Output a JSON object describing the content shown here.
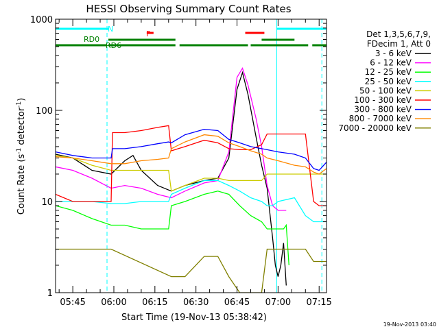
{
  "chart_data": {
    "type": "line",
    "title": "HESSI Observing Summary Count Rates",
    "xlabel": "Start Time (19-Nov-13 05:38:42)",
    "ylabel_parts": [
      "Count Rate (s",
      "-1",
      " detector",
      "-1",
      ")"
    ],
    "y_scale": "log",
    "ylim": [
      1,
      1000
    ],
    "xlim": [
      38.7,
      137.7
    ],
    "x_units": "minutes after 05:00",
    "y_tick_labels": [
      {
        "value": 1,
        "label": "1"
      },
      {
        "value": 10,
        "label": "10"
      },
      {
        "value": 100,
        "label": "100"
      },
      {
        "value": 1000,
        "label": "1000"
      }
    ],
    "x_tick_labels": [
      {
        "value": 45,
        "label": "05:45"
      },
      {
        "value": 60,
        "label": "06:00"
      },
      {
        "value": 75,
        "label": "06:15"
      },
      {
        "value": 90,
        "label": "06:30"
      },
      {
        "value": 105,
        "label": "06:45"
      },
      {
        "value": 120,
        "label": "07:00"
      },
      {
        "value": 135,
        "label": "07:15"
      }
    ],
    "legend_title": [
      "Det 1,3,5,6,7,9,",
      "FDecim 1, Att 0"
    ],
    "series": [
      {
        "name": "3 - 6 keV",
        "color": "#000000",
        "points": [
          [
            38.7,
            33
          ],
          [
            45,
            30
          ],
          [
            52,
            22
          ],
          [
            59,
            20
          ],
          [
            64,
            28
          ],
          [
            67,
            32
          ],
          [
            70,
            22
          ],
          [
            76,
            15
          ],
          [
            81,
            13
          ],
          [
            86,
            15
          ],
          [
            93,
            17
          ],
          [
            98,
            18
          ],
          [
            102,
            30
          ],
          [
            105,
            170
          ],
          [
            107,
            260
          ],
          [
            109,
            150
          ],
          [
            112,
            50
          ],
          [
            114,
            25
          ],
          [
            116,
            14
          ],
          [
            118,
            4
          ],
          [
            119,
            2
          ],
          [
            120,
            1.5
          ],
          [
            121,
            2
          ],
          [
            122,
            3.5
          ],
          [
            123,
            1.2
          ]
        ]
      },
      {
        "name": "6 - 12 keV",
        "color": "#ff00ff",
        "points": [
          [
            38.7,
            24
          ],
          [
            45,
            22
          ],
          [
            52,
            18
          ],
          [
            59,
            14
          ],
          [
            64,
            15
          ],
          [
            70,
            14
          ],
          [
            76,
            12
          ],
          [
            81,
            11
          ],
          [
            86,
            13
          ],
          [
            93,
            16
          ],
          [
            98,
            17
          ],
          [
            102,
            35
          ],
          [
            105,
            230
          ],
          [
            107,
            290
          ],
          [
            109,
            190
          ],
          [
            112,
            80
          ],
          [
            114,
            40
          ],
          [
            116,
            15
          ],
          [
            118,
            9
          ],
          [
            120,
            8
          ],
          [
            122,
            8
          ],
          [
            123,
            8
          ]
        ]
      },
      {
        "name": "12 - 25 keV",
        "color": "#00ff00",
        "points": [
          [
            38.7,
            9
          ],
          [
            45,
            8
          ],
          [
            52,
            6.5
          ],
          [
            59,
            5.5
          ],
          [
            64,
            5.5
          ],
          [
            70,
            5
          ],
          [
            76,
            5
          ],
          [
            80,
            5
          ],
          [
            81,
            9
          ],
          [
            86,
            10
          ],
          [
            93,
            12
          ],
          [
            98,
            13
          ],
          [
            102,
            12
          ],
          [
            106,
            9
          ],
          [
            110,
            7
          ],
          [
            114,
            6
          ],
          [
            116,
            5
          ],
          [
            118,
            5
          ],
          [
            120,
            5
          ],
          [
            122,
            5
          ],
          [
            123,
            5.5
          ],
          [
            124,
            2
          ]
        ]
      },
      {
        "name": "25 - 50 keV",
        "color": "#00ffff",
        "points": [
          [
            38.7,
            10
          ],
          [
            45,
            10
          ],
          [
            52,
            10
          ],
          [
            59,
            9.5
          ],
          [
            64,
            9.5
          ],
          [
            70,
            10
          ],
          [
            76,
            10
          ],
          [
            80,
            10
          ],
          [
            81,
            12
          ],
          [
            86,
            14
          ],
          [
            93,
            17
          ],
          [
            98,
            17
          ],
          [
            102,
            15
          ],
          [
            106,
            13
          ],
          [
            110,
            11
          ],
          [
            114,
            10
          ],
          [
            116,
            9
          ],
          [
            118,
            9
          ],
          [
            120,
            10
          ],
          [
            126,
            11
          ],
          [
            130,
            7
          ],
          [
            133,
            6
          ],
          [
            135,
            6
          ],
          [
            136,
            6
          ],
          [
            137.7,
            6
          ]
        ]
      },
      {
        "name": "50 - 100 keV",
        "color": "#cccc00",
        "points": [
          [
            38.7,
            32
          ],
          [
            45,
            30
          ],
          [
            52,
            25
          ],
          [
            59,
            22
          ],
          [
            64,
            22
          ],
          [
            70,
            22
          ],
          [
            76,
            22
          ],
          [
            80,
            22
          ],
          [
            81,
            13
          ],
          [
            86,
            15
          ],
          [
            93,
            18
          ],
          [
            98,
            18
          ],
          [
            102,
            17
          ],
          [
            106,
            17
          ],
          [
            110,
            17
          ],
          [
            114,
            17
          ],
          [
            116,
            20
          ],
          [
            120,
            20
          ],
          [
            126,
            20
          ],
          [
            130,
            20
          ],
          [
            133,
            20
          ],
          [
            135,
            20
          ],
          [
            137.7,
            20
          ]
        ]
      },
      {
        "name": "100 - 300 keV",
        "color": "#ff0000",
        "points": [
          [
            38.7,
            12
          ],
          [
            45,
            10
          ],
          [
            52,
            10
          ],
          [
            59,
            10
          ],
          [
            59.5,
            57
          ],
          [
            64,
            57
          ],
          [
            70,
            60
          ],
          [
            76,
            65
          ],
          [
            80,
            68
          ],
          [
            81,
            36
          ],
          [
            86,
            40
          ],
          [
            93,
            47
          ],
          [
            98,
            44
          ],
          [
            102,
            38
          ],
          [
            106,
            37
          ],
          [
            110,
            37
          ],
          [
            114,
            42
          ],
          [
            116,
            55
          ],
          [
            120,
            55
          ],
          [
            126,
            55
          ],
          [
            130,
            55
          ],
          [
            133,
            10
          ],
          [
            135,
            9
          ],
          [
            137.7,
            9
          ]
        ]
      },
      {
        "name": "300 - 800 keV",
        "color": "#0000ff",
        "points": [
          [
            38.7,
            35
          ],
          [
            45,
            32
          ],
          [
            52,
            30
          ],
          [
            59,
            30
          ],
          [
            59.5,
            38
          ],
          [
            64,
            38
          ],
          [
            70,
            40
          ],
          [
            76,
            43
          ],
          [
            80,
            45
          ],
          [
            81,
            44
          ],
          [
            86,
            54
          ],
          [
            93,
            62
          ],
          [
            98,
            60
          ],
          [
            102,
            48
          ],
          [
            106,
            44
          ],
          [
            110,
            40
          ],
          [
            114,
            38
          ],
          [
            116,
            37
          ],
          [
            120,
            35
          ],
          [
            126,
            33
          ],
          [
            130,
            30
          ],
          [
            133,
            23
          ],
          [
            135,
            22
          ],
          [
            137.7,
            27
          ]
        ]
      },
      {
        "name": "800 - 7000 keV",
        "color": "#ff8800",
        "points": [
          [
            38.7,
            31
          ],
          [
            45,
            30
          ],
          [
            52,
            28
          ],
          [
            59,
            26
          ],
          [
            64,
            26
          ],
          [
            70,
            28
          ],
          [
            76,
            29
          ],
          [
            80,
            30
          ],
          [
            81,
            38
          ],
          [
            86,
            45
          ],
          [
            93,
            54
          ],
          [
            98,
            52
          ],
          [
            102,
            44
          ],
          [
            106,
            40
          ],
          [
            110,
            36
          ],
          [
            114,
            33
          ],
          [
            116,
            30
          ],
          [
            120,
            28
          ],
          [
            126,
            25
          ],
          [
            130,
            24
          ],
          [
            133,
            21
          ],
          [
            135,
            20
          ],
          [
            137.7,
            23
          ]
        ]
      },
      {
        "name": "7000 - 20000 keV",
        "color": "#808000",
        "points": [
          [
            38.7,
            3
          ],
          [
            45,
            3
          ],
          [
            52,
            3
          ],
          [
            59,
            3
          ],
          [
            81,
            1.5
          ],
          [
            86,
            1.5
          ],
          [
            93,
            2.5
          ],
          [
            98,
            2.5
          ],
          [
            102,
            1.5
          ],
          [
            106,
            1
          ],
          [
            114,
            1
          ],
          [
            116,
            3
          ],
          [
            120,
            3
          ],
          [
            126,
            3
          ],
          [
            130,
            3
          ],
          [
            133,
            2.2
          ],
          [
            135,
            2.2
          ],
          [
            137.7,
            2.2
          ]
        ]
      }
    ],
    "flag_bars": [
      {
        "label": "N",
        "color": "#00ffff",
        "segments": [
          [
            38.7,
            58
          ],
          [
            119.5,
            137.7
          ]
        ],
        "level": 1
      },
      {
        "label": "F",
        "color": "#ff0000",
        "segments": [
          [
            72,
            74.5
          ],
          [
            108,
            115
          ]
        ],
        "level": 2
      },
      {
        "label": "RD0",
        "color": "#008000",
        "segments": [
          [
            58,
            82.5
          ],
          [
            114,
            126
          ]
        ],
        "level": 3
      },
      {
        "label": "RD6",
        "color": "#008000",
        "segments": [
          [
            38.7,
            57.5
          ],
          [
            58,
            82.5
          ],
          [
            84,
            109
          ],
          [
            110,
            131
          ],
          [
            132.5,
            137.7
          ]
        ],
        "level": 4
      }
    ],
    "vertical_lines": [
      {
        "x": 57.5,
        "style": "dashed",
        "color": "#00ffff"
      },
      {
        "x": 119.5,
        "style": "solid",
        "color": "#00ffff"
      },
      {
        "x": 136,
        "style": "dashed",
        "color": "#00ffff"
      }
    ],
    "grid": false,
    "legend_position": "right"
  },
  "footer": {
    "date_stamp": "19-Nov-2013 03:40"
  }
}
